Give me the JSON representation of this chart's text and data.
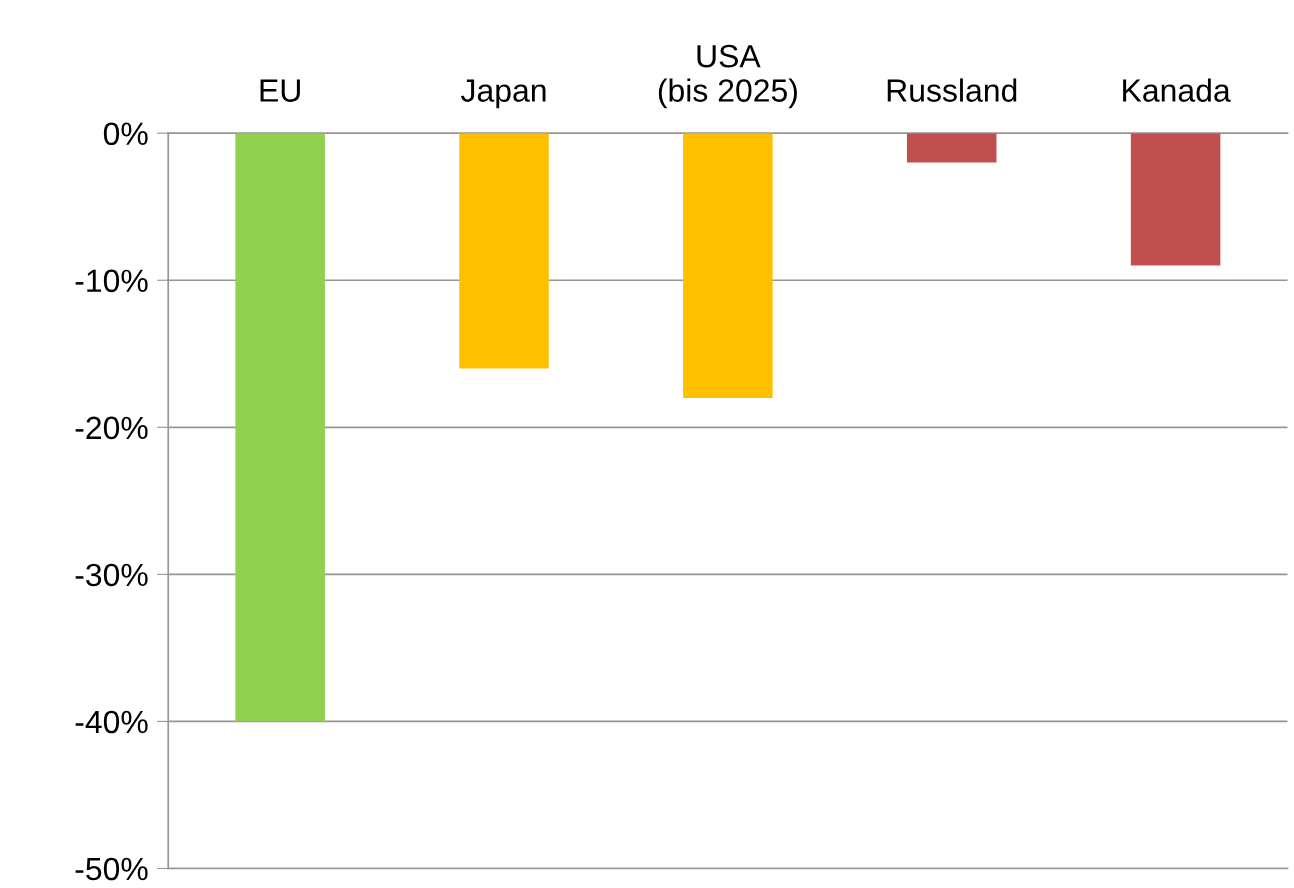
{
  "chart_data": {
    "type": "bar",
    "categories": [
      "EU",
      "Japan",
      "USA\n(bis 2025)",
      "Russland",
      "Kanada"
    ],
    "values": [
      -40,
      -16,
      -18,
      -2,
      -9
    ],
    "colors": [
      "#92d050",
      "#ffc000",
      "#ffc000",
      "#c0504d",
      "#c0504d"
    ],
    "ylim": [
      -50,
      0
    ],
    "yticks": [
      {
        "value": -50,
        "label": "-50%"
      },
      {
        "value": -40,
        "label": "-40%"
      },
      {
        "value": -30,
        "label": "-30%"
      },
      {
        "value": -20,
        "label": "-20%"
      },
      {
        "value": -10,
        "label": "-10%"
      },
      {
        "value": 0,
        "label": "0%"
      }
    ],
    "grid": "y"
  }
}
